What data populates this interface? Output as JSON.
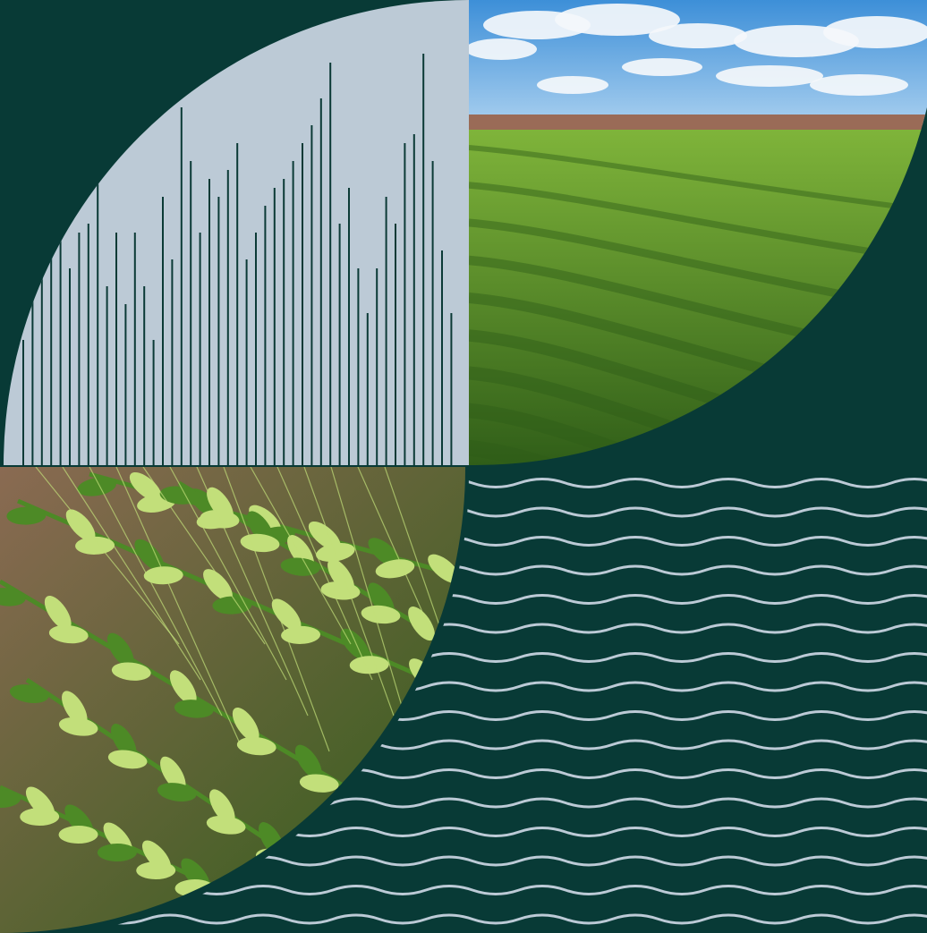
{
  "colors": {
    "background": "#083a36",
    "bar_panel": "#bccad6",
    "bar_line": "#0b3a36",
    "wave_line": "#bccad6",
    "sky_top": "#3d8fd8",
    "sky_bottom": "#a8cfef",
    "cloud": "#f4f7fb",
    "field_light": "#7fb43a",
    "field_dark": "#2f5d18",
    "town": "#9a6b57",
    "wheat_bg": "#8a6a52",
    "wheat_light": "#c2df7a",
    "wheat_dark": "#4d8a26"
  },
  "panels": {
    "top_left": {
      "kind": "bar-pattern",
      "bar_levels": [
        0.28,
        0.4,
        0.49,
        0.56,
        0.6,
        0.44,
        0.52,
        0.54,
        0.64,
        0.4,
        0.52,
        0.36,
        0.52,
        0.4,
        0.28,
        0.6,
        0.46,
        0.8,
        0.68,
        0.52,
        0.64,
        0.6,
        0.66,
        0.72,
        0.46,
        0.52,
        0.58,
        0.62,
        0.64,
        0.68,
        0.72,
        0.76,
        0.82,
        0.9,
        0.54,
        0.62,
        0.44,
        0.34,
        0.44,
        0.6,
        0.54,
        0.72,
        0.74,
        0.92,
        0.68,
        0.48,
        0.34
      ]
    },
    "top_right": {
      "kind": "photo",
      "subject": "green-wheat-field-under-sky"
    },
    "bottom_left": {
      "kind": "photo",
      "subject": "wheat-ears-closeup"
    },
    "bottom_right": {
      "kind": "wave-pattern",
      "rows": 16
    }
  }
}
